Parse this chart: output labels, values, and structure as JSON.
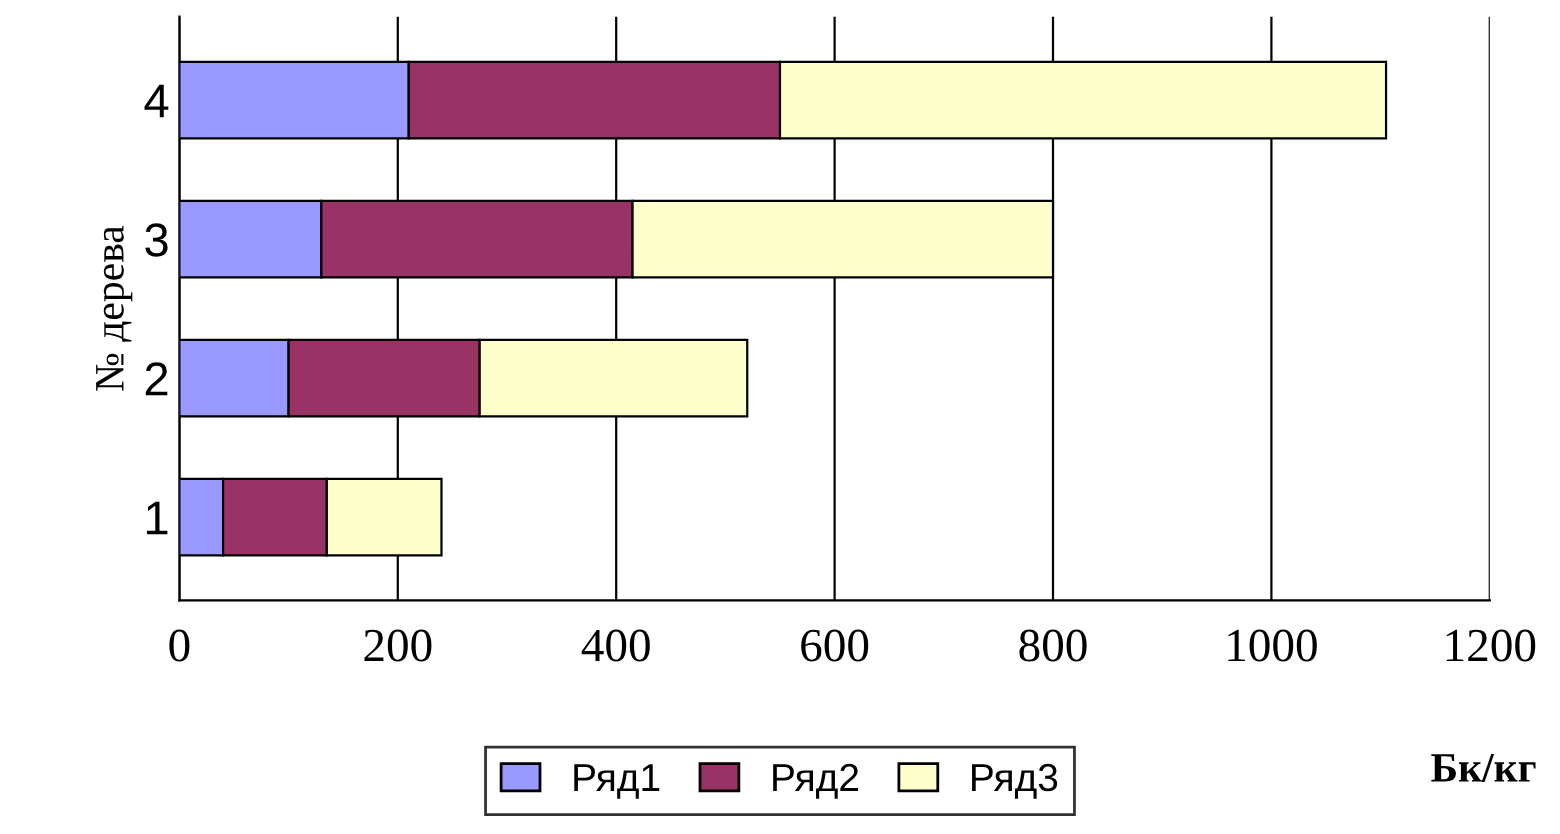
{
  "chart_data": {
    "type": "bar",
    "orientation": "horizontal",
    "stacked": true,
    "categories": [
      "4",
      "3",
      "2",
      "1"
    ],
    "series": [
      {
        "name": "Ряд1",
        "color": "#9999ff",
        "values": [
          210,
          130,
          100,
          40
        ]
      },
      {
        "name": "Ряд2",
        "color": "#993366",
        "values": [
          340,
          285,
          175,
          95
        ]
      },
      {
        "name": "Ряд3",
        "color": "#ffffcc",
        "values": [
          555,
          385,
          245,
          105
        ]
      }
    ],
    "xlim": [
      0,
      1200
    ],
    "xticks": [
      0,
      200,
      400,
      600,
      800,
      1000,
      1200
    ],
    "ylabel": "№ дерева",
    "xlabel": "Бк/кг",
    "grid": "x",
    "legend": "bottom"
  }
}
